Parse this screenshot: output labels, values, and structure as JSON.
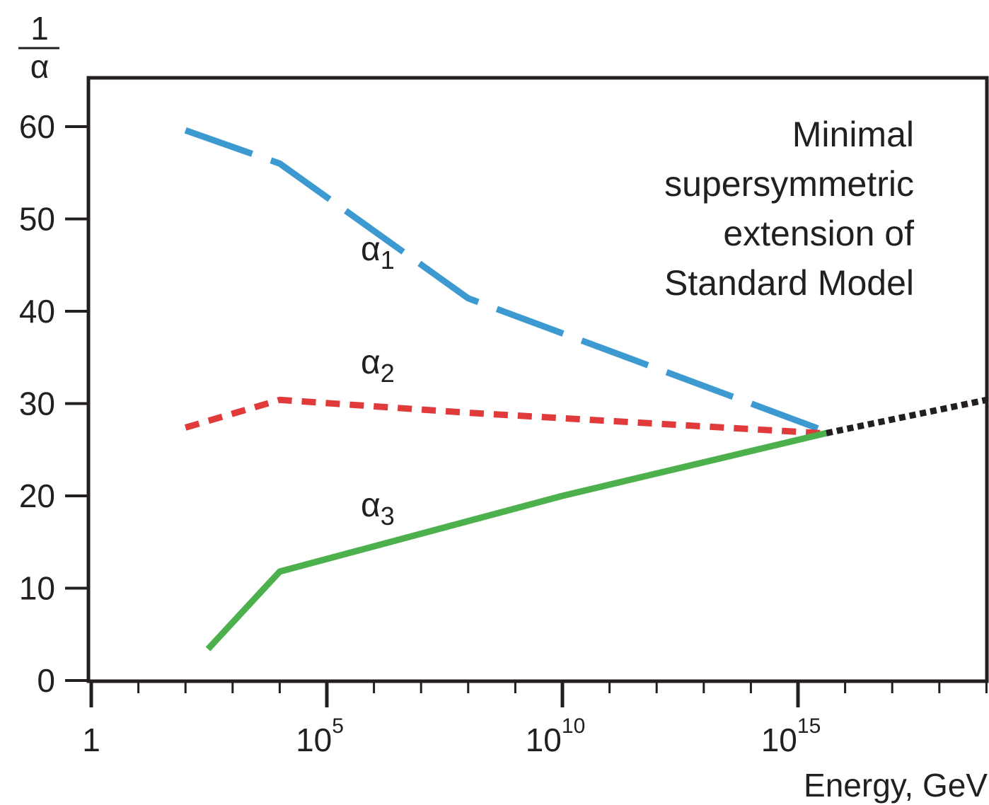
{
  "chart_data": {
    "type": "line",
    "ylabel": {
      "numerator": "1",
      "denominator": "α"
    },
    "xlabel": "Energy, GeV",
    "x_scale": "log10",
    "xlim": [
      1,
      1e+19
    ],
    "ylim": [
      0,
      60
    ],
    "x_ticks": [
      {
        "base": "1",
        "exp": ""
      },
      {
        "base": "10",
        "exp": "5"
      },
      {
        "base": "10",
        "exp": "10"
      },
      {
        "base": "10",
        "exp": "15"
      }
    ],
    "y_ticks": [
      "0",
      "10",
      "20",
      "30",
      "40",
      "50",
      "60"
    ],
    "annotation": [
      "Minimal",
      "supersymmetric",
      "extension of",
      "Standard Model"
    ],
    "grid": false,
    "series": [
      {
        "name": {
          "base": "α",
          "sub": "1"
        },
        "color": "#3d9ad1",
        "style": "dashed-long",
        "points": [
          [
            100,
            59.6
          ],
          [
            10000.0,
            56.0
          ],
          [
            100000000.0,
            41.4
          ],
          [
            3000000000000000.0,
            27.2
          ]
        ]
      },
      {
        "name": {
          "base": "α",
          "sub": "2"
        },
        "color": "#e03a3a",
        "style": "dashed-short",
        "points": [
          [
            100,
            27.4
          ],
          [
            10000.0,
            30.4
          ],
          [
            100000000.0,
            29.0
          ],
          [
            3000000000000000.0,
            26.8
          ]
        ]
      },
      {
        "name": {
          "base": "α",
          "sub": "3"
        },
        "color": "#4cb04c",
        "style": "solid",
        "points": [
          [
            300,
            3.4
          ],
          [
            10000.0,
            11.8
          ],
          [
            10000000000.0,
            20.0
          ],
          [
            4000000000000000.0,
            26.8
          ]
        ]
      },
      {
        "name": null,
        "color": "#231f20",
        "style": "dotted",
        "points": [
          [
            4000000000000000.0,
            26.8
          ],
          [
            1e+19,
            30.4
          ]
        ]
      }
    ]
  }
}
